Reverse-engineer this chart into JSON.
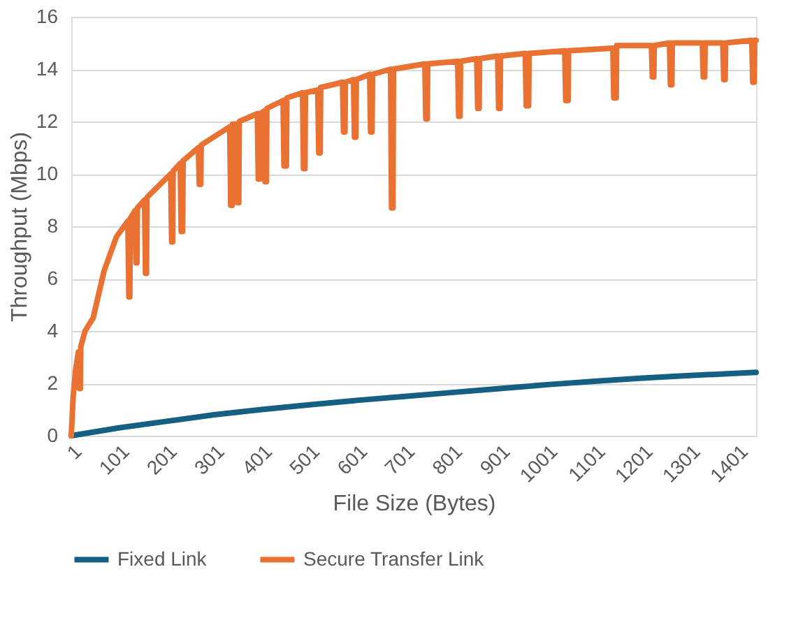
{
  "chart_data": {
    "type": "line",
    "xlabel": "File Size (Bytes)",
    "ylabel": "Throughput (Mbps)",
    "xlim": [
      1,
      1440
    ],
    "xticks": [
      1,
      101,
      201,
      301,
      401,
      501,
      601,
      701,
      801,
      901,
      1001,
      1101,
      1201,
      1301,
      1401
    ],
    "ylim": [
      0,
      16
    ],
    "yticks": [
      0,
      2,
      4,
      6,
      8,
      10,
      12,
      14,
      16
    ],
    "grid": "y",
    "legend": "bottom",
    "marker": "none",
    "line_style": "solid",
    "series": [
      {
        "name": "Fixed Link",
        "color": "#156082",
        "x": [
          1,
          101,
          201,
          301,
          401,
          501,
          601,
          701,
          801,
          901,
          1001,
          1101,
          1201,
          1301,
          1440
        ],
        "values": [
          0,
          0.3,
          0.55,
          0.8,
          1.0,
          1.18,
          1.35,
          1.5,
          1.65,
          1.8,
          1.95,
          2.08,
          2.2,
          2.3,
          2.42
        ]
      },
      {
        "name": "Secure Transfer Link",
        "color": "#e97132",
        "x": [
          1,
          5,
          10,
          16,
          18,
          20,
          21,
          30,
          47,
          70,
          96,
          120,
          122,
          124,
          125,
          135,
          137,
          139,
          140,
          155,
          157,
          159,
          160,
          210,
          212,
          214,
          215,
          230,
          232,
          235,
          236,
          268,
          270,
          273,
          274,
          334,
          336,
          339,
          340,
          348,
          350,
          353,
          354,
          392,
          394,
          397,
          398,
          406,
          408,
          411,
          412,
          446,
          448,
          453,
          454,
          487,
          489,
          492,
          493,
          519,
          521,
          524,
          525,
          549,
          571,
          573,
          576,
          577,
          594,
          596,
          599,
          600,
          628,
          630,
          633,
          634,
          672,
          674,
          677,
          678,
          744,
          746,
          749,
          750,
          813,
          815,
          818,
          819,
          853,
          855,
          858,
          859,
          897,
          899,
          902,
          903,
          955,
          957,
          962,
          963,
          1038,
          1040,
          1045,
          1046,
          1139,
          1141,
          1146,
          1147,
          1220,
          1222,
          1225,
          1226,
          1258,
          1260,
          1263,
          1264,
          1327,
          1329,
          1332,
          1333,
          1370,
          1372,
          1375,
          1376,
          1431,
          1433,
          1436,
          1437,
          1440
        ],
        "values": [
          0,
          1.5,
          2.5,
          3.2,
          1.8,
          1.8,
          3.4,
          4.0,
          4.5,
          6.3,
          7.6,
          8.2,
          5.3,
          5.3,
          8.3,
          8.6,
          6.6,
          6.6,
          8.7,
          9.0,
          6.2,
          6.2,
          9.1,
          10.0,
          7.4,
          7.4,
          10.1,
          10.4,
          7.8,
          7.8,
          10.5,
          11.0,
          9.6,
          9.6,
          11.1,
          11.8,
          8.8,
          8.8,
          11.9,
          11.9,
          8.9,
          8.9,
          12.0,
          12.3,
          9.8,
          9.8,
          12.3,
          12.4,
          9.7,
          9.7,
          12.5,
          12.8,
          10.3,
          10.3,
          12.9,
          13.1,
          10.2,
          10.2,
          13.1,
          13.2,
          10.8,
          10.8,
          13.3,
          13.4,
          13.5,
          11.6,
          11.6,
          13.5,
          13.6,
          11.4,
          11.4,
          13.6,
          13.8,
          11.6,
          11.6,
          13.8,
          14.0,
          8.7,
          8.7,
          14.0,
          14.2,
          12.1,
          12.1,
          14.2,
          14.3,
          12.2,
          12.2,
          14.3,
          14.4,
          12.5,
          12.5,
          14.4,
          14.5,
          12.5,
          12.5,
          14.5,
          14.6,
          12.6,
          12.6,
          14.6,
          14.7,
          12.8,
          12.8,
          14.7,
          14.8,
          12.9,
          12.9,
          14.9,
          14.9,
          13.7,
          13.7,
          14.9,
          15.0,
          13.4,
          13.4,
          15.0,
          15.0,
          13.7,
          13.7,
          15.0,
          15.0,
          13.6,
          13.6,
          15.0,
          15.1,
          13.5,
          13.5,
          15.1,
          15.1
        ]
      }
    ]
  }
}
